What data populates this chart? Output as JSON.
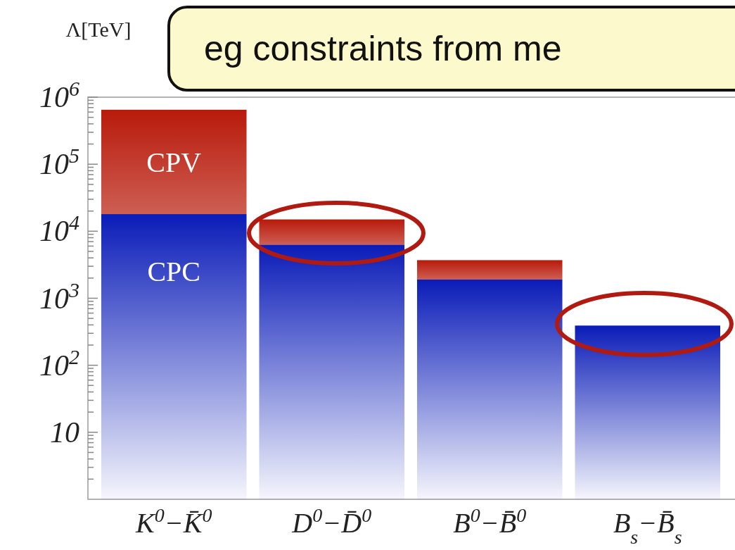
{
  "chart_data": {
    "type": "bar",
    "title": "eg constraints from me",
    "ylabel": "Λ[TeV]",
    "categories": [
      "K$^{0}$−K̄$^{0}$",
      "D$^{0}$−D̄$^{0}$",
      "B$^{0}$−B̄$^{0}$",
      "B$_{s}$−B̄$_{s}$"
    ],
    "series": [
      {
        "name": "CPC",
        "color": "#0a1cb8",
        "values": [
          18000,
          6300,
          1900,
          390
        ]
      },
      {
        "name": "CPV",
        "color": "#b81a0a",
        "values": [
          632000,
          8700,
          1800,
          null
        ]
      }
    ],
    "stacked": true,
    "log": true,
    "legend": false,
    "grid": false,
    "ylim": [
      1,
      1000000
    ],
    "yticks": [
      {
        "value": 2,
        "label": null
      },
      {
        "value": 3,
        "label": null
      },
      {
        "value": 4,
        "label": null
      },
      {
        "value": 5,
        "label": null
      },
      {
        "value": 6,
        "label": null
      },
      {
        "value": 7,
        "label": null
      },
      {
        "value": 8,
        "label": null
      },
      {
        "value": 9,
        "label": null
      },
      10,
      {
        "value": 20,
        "label": null
      },
      {
        "value": 30,
        "label": null
      },
      {
        "value": 40,
        "label": null
      },
      {
        "value": 50,
        "label": null
      },
      {
        "value": 60,
        "label": null
      },
      {
        "value": 70,
        "label": null
      },
      {
        "value": 80,
        "label": null
      },
      {
        "value": 90,
        "label": null
      },
      {
        "value": 100,
        "label": "10$^{2}$"
      },
      {
        "value": 200,
        "label": null
      },
      {
        "value": 300,
        "label": null
      },
      {
        "value": 400,
        "label": null
      },
      {
        "value": 500,
        "label": null
      },
      {
        "value": 600,
        "label": null
      },
      {
        "value": 700,
        "label": null
      },
      {
        "value": 800,
        "label": null
      },
      {
        "value": 900,
        "label": null
      },
      {
        "value": 1000,
        "label": "10$^{3}$"
      },
      {
        "value": 2000,
        "label": null
      },
      {
        "value": 3000,
        "label": null
      },
      {
        "value": 4000,
        "label": null
      },
      {
        "value": 5000,
        "label": null
      },
      {
        "value": 6000,
        "label": null
      },
      {
        "value": 7000,
        "label": null
      },
      {
        "value": 8000,
        "label": null
      },
      {
        "value": 9000,
        "label": null
      },
      {
        "value": 10000,
        "label": "10$^{4}$"
      },
      {
        "value": 20000,
        "label": null
      },
      {
        "value": 30000,
        "label": null
      },
      {
        "value": 40000,
        "label": null
      },
      {
        "value": 50000,
        "label": null
      },
      {
        "value": 60000,
        "label": null
      },
      {
        "value": 70000,
        "label": null
      },
      {
        "value": 80000,
        "label": null
      },
      {
        "value": 90000,
        "label": null
      },
      {
        "value": 100000,
        "label": "10$^{5}$"
      },
      {
        "value": 200000,
        "label": null
      },
      {
        "value": 300000,
        "label": null
      },
      {
        "value": 400000,
        "label": null
      },
      {
        "value": 500000,
        "label": null
      },
      {
        "value": 600000,
        "label": null
      },
      {
        "value": 700000,
        "label": null
      },
      {
        "value": 800000,
        "label": null
      },
      {
        "value": 900000,
        "label": null
      },
      {
        "value": 1000000,
        "label": "10$^{6}$"
      }
    ]
  }
}
